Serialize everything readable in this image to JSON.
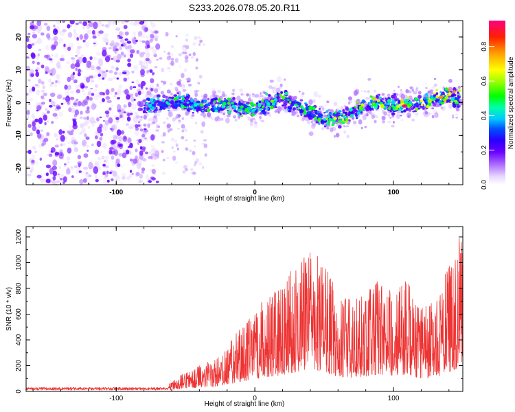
{
  "title": "S233.2026.078.05.20.R11",
  "chart_data": [
    {
      "type": "heatmap",
      "name": "spectrogram",
      "xlabel": "Height of straight line (km)",
      "ylabel": "Frequency (Hz)",
      "xlim": [
        -165,
        150
      ],
      "ylim": [
        -25,
        25
      ],
      "xticks": [
        -100,
        0,
        100
      ],
      "yticks": [
        -20,
        -10,
        0,
        10,
        20
      ],
      "colorbar": {
        "label": "Normalized spectral amplitude",
        "range": [
          0,
          0.95
        ],
        "ticks": [
          0,
          0.2,
          0.4,
          0.6,
          0.8
        ],
        "tick_labels": [
          "0.0",
          "0.2",
          "0.4",
          "0.6",
          "0.8"
        ]
      },
      "ridge": {
        "x": [
          -80,
          -60,
          -40,
          -20,
          0,
          10,
          20,
          30,
          40,
          50,
          60,
          70,
          80,
          90,
          100,
          110,
          120,
          130,
          140,
          146
        ],
        "y": [
          -1,
          0,
          -1,
          -1,
          -2,
          0,
          1,
          -1,
          -3,
          -5,
          -5,
          -3,
          -1,
          0,
          -1,
          -0.5,
          0,
          1,
          2,
          1
        ]
      },
      "peak": {
        "x": 108,
        "y": -1,
        "value": 0.95
      }
    },
    {
      "type": "line",
      "name": "snr",
      "xlabel": "Height of straight line (km)",
      "ylabel": "SNR (10 * v/v)",
      "xlim": [
        -165,
        150
      ],
      "ylim": [
        0,
        1280
      ],
      "xticks": [
        -100,
        0,
        100
      ],
      "yticks": [
        0,
        200,
        400,
        600,
        800,
        1000,
        1200
      ],
      "series": [
        {
          "name": "SNR",
          "color": "#ee3333",
          "envelope_x": [
            -165,
            -70,
            -60,
            -50,
            -40,
            -30,
            -20,
            -10,
            0,
            10,
            20,
            30,
            40,
            50,
            60,
            70,
            80,
            90,
            100,
            110,
            120,
            130,
            140,
            150
          ],
          "envelope_y": [
            20,
            25,
            70,
            160,
            200,
            250,
            350,
            520,
            640,
            750,
            850,
            1000,
            1140,
            1000,
            760,
            720,
            760,
            880,
            760,
            880,
            640,
            720,
            1000,
            1270
          ]
        }
      ]
    }
  ],
  "colors": {
    "snr_line": "#ee3333",
    "frame": "#000000",
    "background": "#ffffff"
  }
}
